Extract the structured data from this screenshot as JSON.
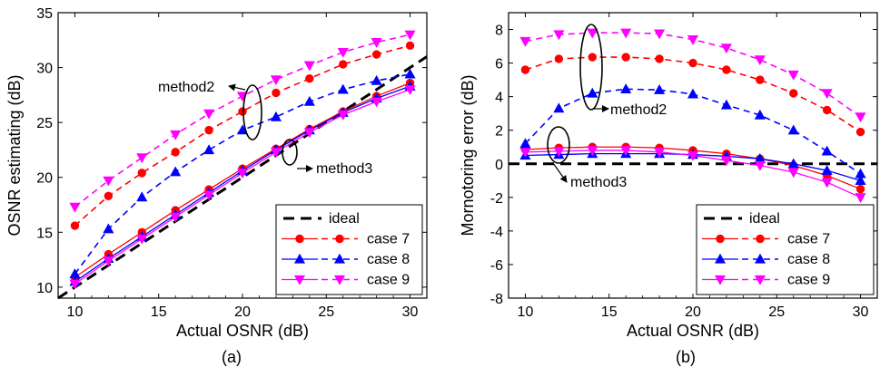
{
  "chart_data": [
    {
      "type": "line",
      "caption": "(a)",
      "xlabel": "Actual OSNR (dB)",
      "ylabel": "OSNR estimating (dB)",
      "xlim": [
        9,
        31
      ],
      "ylim": [
        9,
        35
      ],
      "xticks": [
        10,
        15,
        20,
        25,
        30
      ],
      "yticks": [
        10,
        15,
        20,
        25,
        30,
        35
      ],
      "grid": false,
      "legend_position": "bottom-right",
      "ideal": {
        "name": "ideal",
        "points": [
          [
            9,
            9
          ],
          [
            31,
            31
          ]
        ]
      },
      "x": [
        10,
        12,
        14,
        16,
        18,
        20,
        22,
        24,
        26,
        28,
        30
      ],
      "series": [
        {
          "name": "case 7",
          "color": "#ff0000",
          "marker": "circle",
          "style": "solid",
          "values": [
            10.9,
            13.0,
            15.0,
            17.0,
            18.9,
            20.8,
            22.6,
            24.4,
            26.0,
            27.4,
            28.6
          ]
        },
        {
          "name": "case 8",
          "color": "#0000ff",
          "marker": "triangle-up",
          "style": "solid",
          "values": [
            10.5,
            12.6,
            14.6,
            16.6,
            18.6,
            20.6,
            22.5,
            24.3,
            25.9,
            27.2,
            28.3
          ]
        },
        {
          "name": "case 9",
          "color": "#ff00ff",
          "marker": "triangle-down",
          "style": "solid",
          "values": [
            10.3,
            12.4,
            14.4,
            16.4,
            18.4,
            20.4,
            22.3,
            24.1,
            25.7,
            26.9,
            28.0
          ]
        },
        {
          "name": "case 7",
          "color": "#ff0000",
          "marker": "circle",
          "style": "dashed",
          "values": [
            15.6,
            18.3,
            20.4,
            22.3,
            24.3,
            26.0,
            27.7,
            29.0,
            30.3,
            31.2,
            32.0
          ]
        },
        {
          "name": "case 8",
          "color": "#0000ff",
          "marker": "triangle-up",
          "style": "dashed",
          "values": [
            11.2,
            15.3,
            18.2,
            20.5,
            22.5,
            24.3,
            25.5,
            26.9,
            28.0,
            28.8,
            29.4
          ]
        },
        {
          "name": "case 9",
          "color": "#ff00ff",
          "marker": "triangle-down",
          "style": "dashed",
          "values": [
            17.3,
            19.7,
            21.8,
            23.9,
            25.8,
            27.4,
            28.9,
            30.2,
            31.4,
            32.3,
            33.0
          ]
        }
      ],
      "annotations": [
        {
          "text": "method2"
        },
        {
          "text": "method3"
        }
      ]
    },
    {
      "type": "line",
      "caption": "(b)",
      "xlabel": "Actual OSNR (dB)",
      "ylabel": "Mornotoring error (dB)",
      "xlim": [
        9,
        31
      ],
      "ylim": [
        -8,
        9
      ],
      "xticks": [
        10,
        15,
        20,
        25,
        30
      ],
      "yticks": [
        -8,
        -6,
        -4,
        -2,
        0,
        2,
        4,
        6,
        8
      ],
      "grid": false,
      "legend_position": "bottom-right",
      "ideal": {
        "name": "ideal",
        "points": [
          [
            9,
            0
          ],
          [
            31,
            0
          ]
        ]
      },
      "x": [
        10,
        12,
        14,
        16,
        18,
        20,
        22,
        24,
        26,
        28,
        30
      ],
      "series": [
        {
          "name": "case 7",
          "color": "#ff0000",
          "marker": "circle",
          "style": "solid",
          "values": [
            0.85,
            0.95,
            1.0,
            1.0,
            0.95,
            0.8,
            0.6,
            0.3,
            -0.1,
            -0.7,
            -1.5
          ]
        },
        {
          "name": "case 8",
          "color": "#0000ff",
          "marker": "triangle-up",
          "style": "solid",
          "values": [
            0.5,
            0.55,
            0.6,
            0.6,
            0.6,
            0.55,
            0.45,
            0.3,
            0.0,
            -0.4,
            -1.0
          ]
        },
        {
          "name": "case 9",
          "color": "#ff00ff",
          "marker": "triangle-down",
          "style": "solid",
          "values": [
            0.7,
            0.75,
            0.8,
            0.8,
            0.7,
            0.5,
            0.2,
            -0.1,
            -0.5,
            -1.1,
            -2.0
          ]
        },
        {
          "name": "case 7",
          "color": "#ff0000",
          "marker": "circle",
          "style": "dashed",
          "values": [
            5.6,
            6.25,
            6.35,
            6.35,
            6.25,
            6.0,
            5.6,
            5.0,
            4.2,
            3.2,
            1.9
          ]
        },
        {
          "name": "case 8",
          "color": "#0000ff",
          "marker": "triangle-up",
          "style": "dashed",
          "values": [
            1.2,
            3.3,
            4.2,
            4.45,
            4.4,
            4.15,
            3.5,
            2.9,
            2.0,
            0.75,
            -0.6
          ]
        },
        {
          "name": "case 9",
          "color": "#ff00ff",
          "marker": "triangle-down",
          "style": "dashed",
          "values": [
            7.3,
            7.7,
            7.8,
            7.8,
            7.75,
            7.4,
            6.9,
            6.2,
            5.3,
            4.2,
            2.8
          ]
        }
      ],
      "annotations": [
        {
          "text": "method2"
        },
        {
          "text": "method3"
        }
      ]
    }
  ]
}
